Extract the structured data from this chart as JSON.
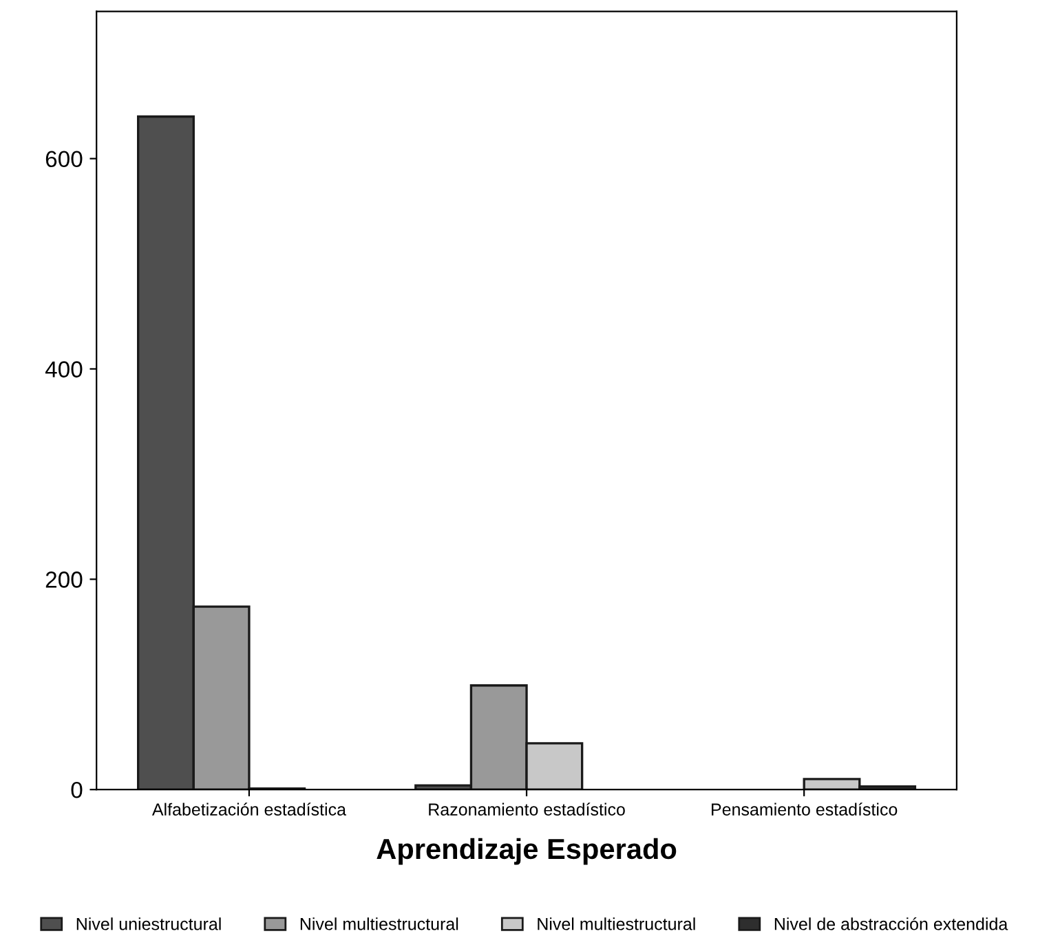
{
  "chart_data": {
    "type": "bar",
    "xlabel": "Aprendizaje Esperado",
    "categories": [
      "Alfabetización estadística",
      "Razonamiento estadístico",
      "Pensamiento estadístico"
    ],
    "series": [
      {
        "name": "Nivel uniestructural",
        "color": "#4f4f4f",
        "values": [
          640,
          4,
          null
        ]
      },
      {
        "name": "Nivel multiestructural",
        "color": "#999999",
        "values": [
          174,
          99,
          null
        ]
      },
      {
        "name": "Nivel multiestructural",
        "color": "#c8c8c8",
        "values": [
          1,
          44,
          10
        ]
      },
      {
        "name": "Nivel de abstracción extendida",
        "color": "#2e2e2e",
        "values": [
          null,
          null,
          3
        ]
      }
    ],
    "ylim": [
      0,
      740
    ],
    "yticks": [
      0,
      200,
      400,
      600
    ],
    "grid": false,
    "legend": "bottom"
  }
}
